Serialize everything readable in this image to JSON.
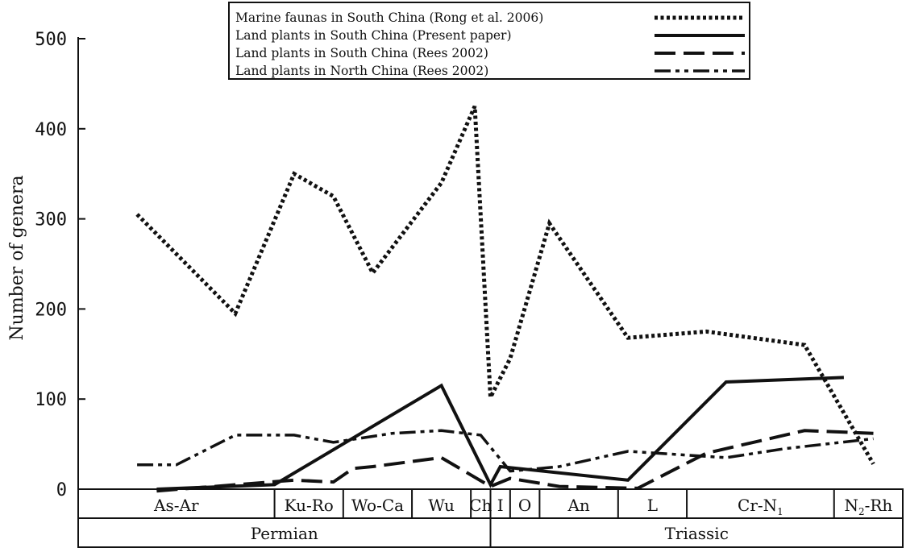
{
  "chart_data": {
    "type": "line",
    "ylabel": "Number of genera",
    "ylim": [
      0,
      500
    ],
    "yticks": [
      0,
      100,
      200,
      300,
      400,
      500
    ],
    "periods": [
      "Permian",
      "Triassic"
    ],
    "stages": [
      {
        "label": "As-Ar",
        "start": 0,
        "end": 10
      },
      {
        "label": "Ku-Ro",
        "start": 10,
        "end": 13.5
      },
      {
        "label": "Wo-Ca",
        "start": 13.5,
        "end": 17
      },
      {
        "label": "Wu",
        "start": 17,
        "end": 20
      },
      {
        "label": "Ch",
        "start": 20,
        "end": 21
      },
      {
        "label": "I",
        "start": 21,
        "end": 22
      },
      {
        "label": "O",
        "start": 22,
        "end": 23.5
      },
      {
        "label": "An",
        "start": 23.5,
        "end": 27.5
      },
      {
        "label": "L",
        "start": 27.5,
        "end": 31
      },
      {
        "label": "Cr-N",
        "sub": "1",
        "start": 31,
        "end": 38.5
      },
      {
        "label": "N",
        "sub": "2",
        "suffix": "-Rh",
        "start": 38.5,
        "end": 42
      }
    ],
    "series": [
      {
        "name": "Marine faunas in South China (Rong et al. 2006)",
        "style": "dotted",
        "points": [
          [
            3,
            305
          ],
          [
            8,
            195
          ],
          [
            11,
            350
          ],
          [
            13,
            325
          ],
          [
            15,
            240
          ],
          [
            18.5,
            340
          ],
          [
            20.2,
            425
          ],
          [
            21,
            102
          ],
          [
            22,
            145
          ],
          [
            24,
            295
          ],
          [
            28,
            168
          ],
          [
            32,
            175
          ],
          [
            37,
            160
          ],
          [
            40.5,
            28
          ]
        ]
      },
      {
        "name": "Land plants in South China (Present paper)",
        "style": "solid",
        "points": [
          [
            4,
            0
          ],
          [
            10,
            5
          ],
          [
            18.5,
            115
          ],
          [
            21,
            5
          ],
          [
            21.5,
            25
          ],
          [
            28,
            10
          ],
          [
            33,
            119
          ],
          [
            39,
            124
          ]
        ]
      },
      {
        "name": "Land plants in South China (Rees 2002)",
        "style": "dashed",
        "points": [
          [
            4,
            -2
          ],
          [
            11,
            10
          ],
          [
            13,
            8
          ],
          [
            14,
            23
          ],
          [
            15,
            25
          ],
          [
            18.5,
            35
          ],
          [
            21,
            3
          ],
          [
            22,
            12
          ],
          [
            24.5,
            3
          ],
          [
            28.5,
            1
          ],
          [
            32,
            40
          ],
          [
            37,
            65
          ],
          [
            40.5,
            62
          ]
        ]
      },
      {
        "name": "Land plants in North China (Rees 2002)",
        "style": "dash-dot-dot",
        "points": [
          [
            3,
            27
          ],
          [
            5,
            27
          ],
          [
            8,
            60
          ],
          [
            11,
            60
          ],
          [
            13,
            52
          ],
          [
            16,
            62
          ],
          [
            18.5,
            65
          ],
          [
            20.5,
            60
          ],
          [
            22,
            20
          ],
          [
            24.5,
            25
          ],
          [
            28,
            42
          ],
          [
            33,
            35
          ],
          [
            36,
            45
          ],
          [
            40.5,
            56
          ]
        ]
      }
    ]
  }
}
